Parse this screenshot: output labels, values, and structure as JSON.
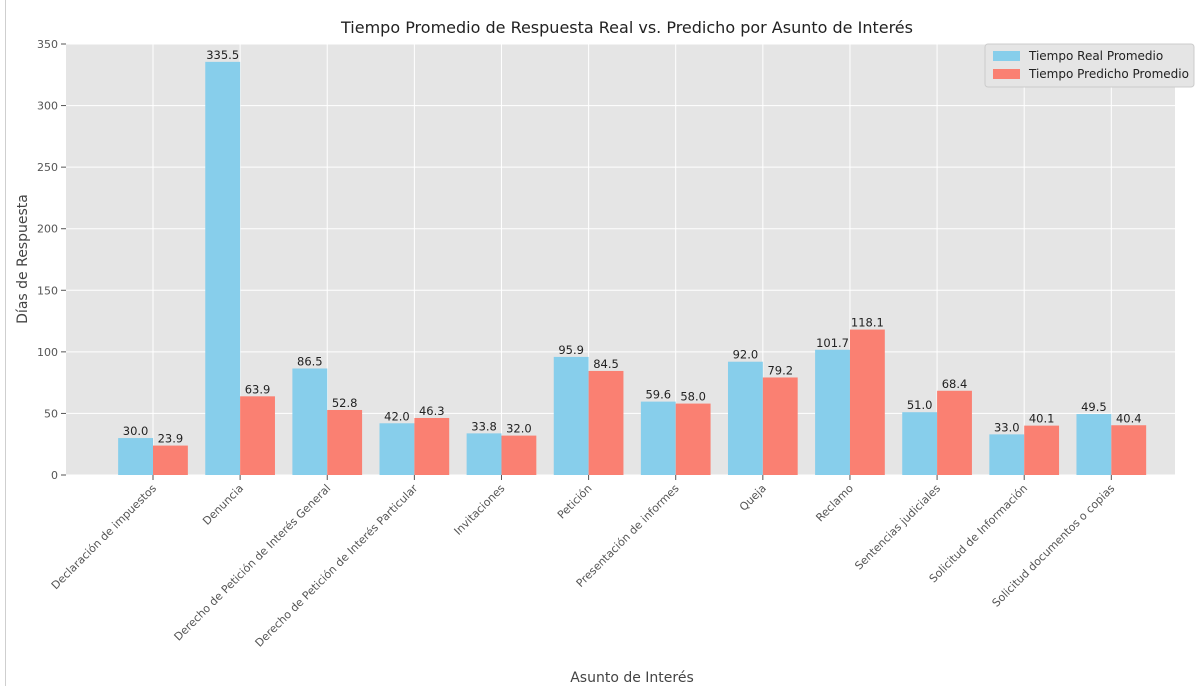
{
  "chart_data": {
    "type": "bar",
    "title": "Tiempo Promedio de Respuesta Real vs. Predicho por Asunto de Interés",
    "xlabel": "Asunto de Interés",
    "ylabel": "Días de Respuesta",
    "ylim": [
      0,
      350
    ],
    "yticks": [
      0,
      50,
      100,
      150,
      200,
      250,
      300,
      350
    ],
    "grid": true,
    "legend_position": "top-right",
    "categories": [
      "Declaración de impuestos",
      "Denuncia",
      "Derecho de Petición de Interés General",
      "Derecho de Petición de Interés Particular",
      "Invitaciones",
      "Petición",
      "Presentación de informes",
      "Queja",
      "Reclamo",
      "Sentencias judiciales",
      "Solicitud de Información",
      "Solicitud documentos o copias"
    ],
    "series": [
      {
        "name": "Tiempo Real Promedio",
        "color": "#87ceeb",
        "values": [
          30.0,
          335.5,
          86.5,
          42.0,
          33.8,
          95.9,
          59.6,
          92.0,
          101.7,
          51.0,
          33.0,
          49.5
        ],
        "labels": [
          "30.0",
          "335.5",
          "86.5",
          "42.0",
          "33.8",
          "95.9",
          "59.6",
          "92.0",
          "101.7",
          "51.0",
          "33.0",
          "49.5"
        ]
      },
      {
        "name": "Tiempo Predicho Promedio",
        "color": "#fa8072",
        "values": [
          23.9,
          63.9,
          52.8,
          46.3,
          32.0,
          84.5,
          58.0,
          79.2,
          118.1,
          68.4,
          40.1,
          40.4
        ],
        "labels": [
          "23.9",
          "63.9",
          "52.8",
          "46.3",
          "32.0",
          "84.5",
          "58.0",
          "79.2",
          "118.1",
          "68.4",
          "40.1",
          "40.4"
        ]
      }
    ]
  }
}
